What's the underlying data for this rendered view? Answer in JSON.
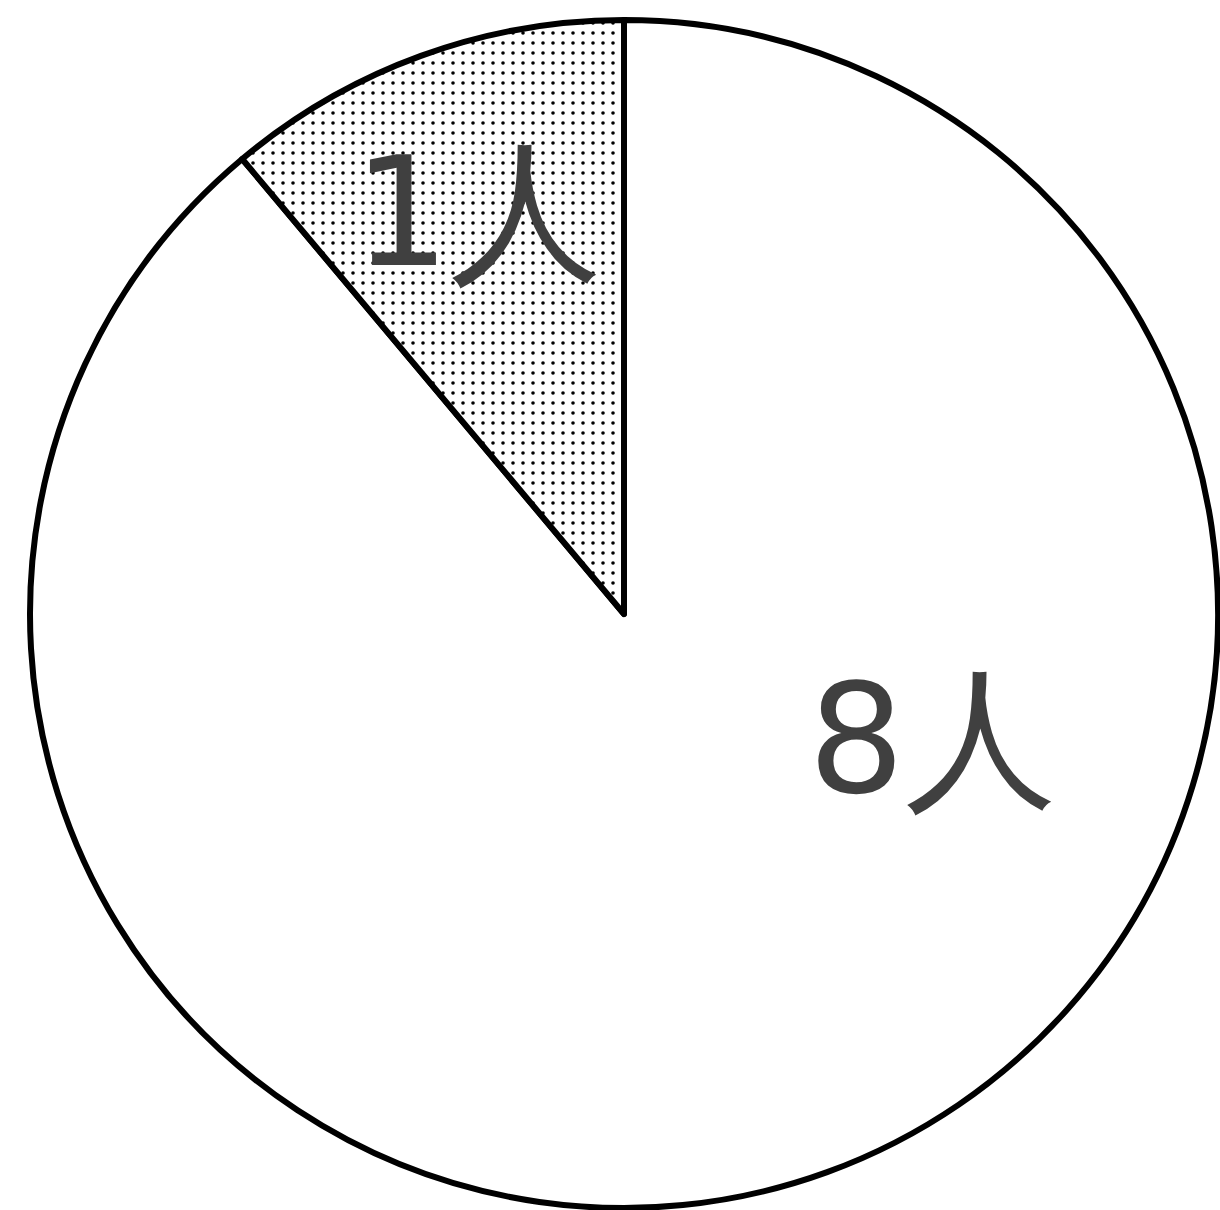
{
  "chart_data": {
    "type": "pie",
    "categories": [
      "8人",
      "1人"
    ],
    "values": [
      8,
      1
    ],
    "colors": [
      "#ffffff",
      "#000000"
    ]
  }
}
